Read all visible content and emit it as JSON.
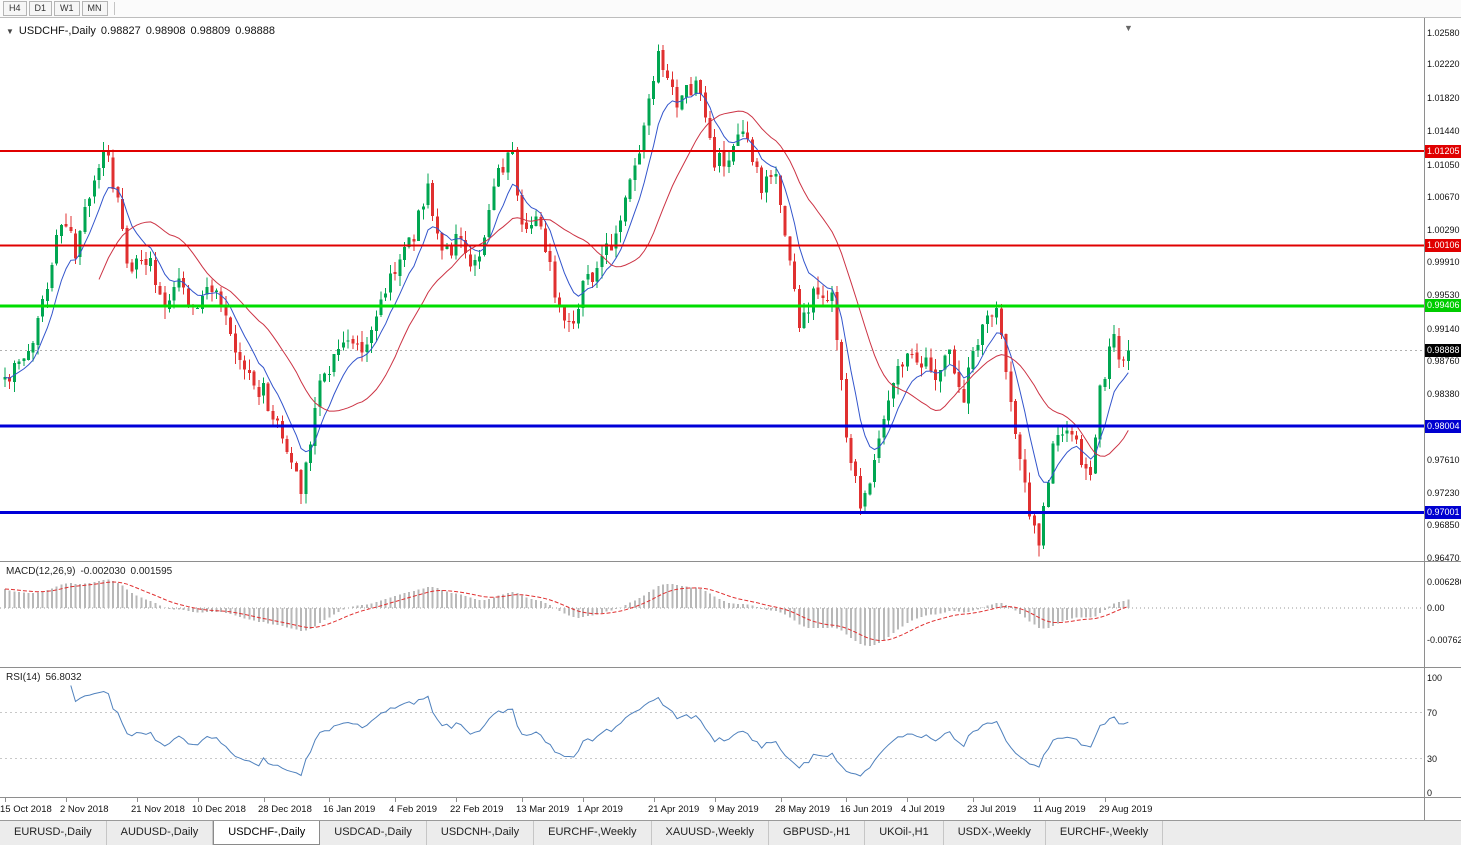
{
  "toolbar": {
    "timeframes": [
      "H4",
      "D1",
      "W1",
      "MN"
    ]
  },
  "header": {
    "expander_icon": "▼",
    "symbol": "USDCHF-,Daily",
    "open": "0.98827",
    "high": "0.98908",
    "low": "0.98809",
    "close": "0.98888",
    "shift_marker_icon": "▼"
  },
  "indicators": {
    "macd": {
      "label": "MACD(12,26,9)",
      "value_main": "-0.002030",
      "value_signal": "0.001595",
      "axis_labels": [
        {
          "text": "0.006286",
          "value": 0.006286
        },
        {
          "text": "0.00",
          "value": 0
        },
        {
          "text": "-0.00762",
          "value": -0.00762
        }
      ]
    },
    "rsi": {
      "label": "RSI(14)",
      "value": "56.8032",
      "axis_labels": [
        {
          "text": "100",
          "value": 100
        },
        {
          "text": "70",
          "value": 70
        },
        {
          "text": "30",
          "value": 30
        },
        {
          "text": "0",
          "value": 0
        }
      ],
      "levels": [
        70,
        30
      ]
    }
  },
  "price_axis": {
    "labels": [
      {
        "text": "1.02580",
        "value": 1.0258
      },
      {
        "text": "1.02220",
        "value": 1.0222
      },
      {
        "text": "1.01820",
        "value": 1.0182
      },
      {
        "text": "1.01440",
        "value": 1.0144
      },
      {
        "text": "1.01050",
        "value": 1.0105
      },
      {
        "text": "1.00670",
        "value": 1.0067
      },
      {
        "text": "1.00290",
        "value": 1.0029
      },
      {
        "text": "0.99910",
        "value": 0.9991
      },
      {
        "text": "0.99530",
        "value": 0.9953
      },
      {
        "text": "0.99140",
        "value": 0.9914
      },
      {
        "text": "0.98760",
        "value": 0.9876
      },
      {
        "text": "0.98380",
        "value": 0.9838
      },
      {
        "text": "0.97610",
        "value": 0.9761
      },
      {
        "text": "0.97230",
        "value": 0.9723
      },
      {
        "text": "0.96850",
        "value": 0.9685
      },
      {
        "text": "0.96470",
        "value": 0.9647
      }
    ],
    "badges": [
      {
        "text": "1.01205",
        "value": 1.01205,
        "bg": "#e00000"
      },
      {
        "text": "1.00106",
        "value": 1.00106,
        "bg": "#e00000"
      },
      {
        "text": "0.99406",
        "value": 0.99406,
        "bg": "#00cc00"
      },
      {
        "text": "0.98888",
        "value": 0.98888,
        "bg": "#000000"
      },
      {
        "text": "0.98004",
        "value": 0.98004,
        "bg": "#0000d0"
      },
      {
        "text": "0.97001",
        "value": 0.97001,
        "bg": "#0000d0"
      }
    ]
  },
  "chart_data": {
    "type": "candlestick",
    "symbol": "USDCHF",
    "timeframe": "Daily",
    "title": "USDCHF-,Daily",
    "ohlc_current": {
      "open": 0.98827,
      "high": 0.98908,
      "low": 0.98809,
      "close": 0.98888
    },
    "price_axis_range": {
      "top": 1.02755,
      "bottom": 0.96424
    },
    "horizontal_lines": [
      {
        "value": 1.01205,
        "color": "#e00000",
        "width": 2,
        "role": "resistance"
      },
      {
        "value": 1.00106,
        "color": "#e00000",
        "width": 2,
        "role": "resistance"
      },
      {
        "value": 0.99406,
        "color": "#00dd00",
        "width": 3,
        "role": "resistance"
      },
      {
        "value": 0.98004,
        "color": "#0000d8",
        "width": 3,
        "role": "support"
      },
      {
        "value": 0.97001,
        "color": "#0000d8",
        "width": 3,
        "role": "support"
      }
    ],
    "current_price_line": {
      "value": 0.98888,
      "color": "#b0b0b0"
    },
    "candle_count": 240,
    "seed": 42,
    "noise": 0.0012,
    "last_close": 0.98888,
    "macd_seed_bias": 0.0045,
    "ma_fast_period": 8,
    "ma_slow_period": 21,
    "macd_params": [
      12,
      26,
      9
    ],
    "rsi_period": 14,
    "price_path_anchors": [
      [
        0,
        0.9855
      ],
      [
        5,
        0.988
      ],
      [
        12,
        1.004
      ],
      [
        15,
        1.0005
      ],
      [
        21,
        1.0125
      ],
      [
        24,
        1.006
      ],
      [
        26,
        0.9985
      ],
      [
        30,
        1.0
      ],
      [
        34,
        0.9945
      ],
      [
        37,
        0.9975
      ],
      [
        40,
        0.9935
      ],
      [
        44,
        0.9965
      ],
      [
        50,
        0.987
      ],
      [
        55,
        0.984
      ],
      [
        58,
        0.98
      ],
      [
        63,
        0.973
      ],
      [
        67,
        0.985
      ],
      [
        72,
        0.9905
      ],
      [
        76,
        0.9885
      ],
      [
        82,
        0.9975
      ],
      [
        87,
        1.0025
      ],
      [
        90,
        1.008
      ],
      [
        93,
        1.0005
      ],
      [
        97,
        1.0015
      ],
      [
        100,
        0.9985
      ],
      [
        105,
        1.009
      ],
      [
        108,
        1.012
      ],
      [
        110,
        1.0035
      ],
      [
        113,
        1.0045
      ],
      [
        118,
        0.994
      ],
      [
        121,
        0.9925
      ],
      [
        123,
        0.997
      ],
      [
        127,
        0.999
      ],
      [
        130,
        1.0025
      ],
      [
        135,
        1.012
      ],
      [
        139,
        1.0225
      ],
      [
        143,
        1.017
      ],
      [
        147,
        1.0205
      ],
      [
        151,
        1.011
      ],
      [
        154,
        1.0105
      ],
      [
        157,
        1.014
      ],
      [
        161,
        1.0075
      ],
      [
        164,
        1.0095
      ],
      [
        169,
        0.992
      ],
      [
        172,
        0.995
      ],
      [
        176,
        0.9955
      ],
      [
        179,
        0.979
      ],
      [
        182,
        0.9705
      ],
      [
        185,
        0.9765
      ],
      [
        189,
        0.986
      ],
      [
        193,
        0.9895
      ],
      [
        197,
        0.986
      ],
      [
        201,
        0.9885
      ],
      [
        204,
        0.9835
      ],
      [
        207,
        0.9905
      ],
      [
        211,
        0.9945
      ],
      [
        214,
        0.9825
      ],
      [
        217,
        0.9725
      ],
      [
        220,
        0.9665
      ],
      [
        223,
        0.9775
      ],
      [
        226,
        0.98
      ],
      [
        229,
        0.976
      ],
      [
        231,
        0.9735
      ],
      [
        233,
        0.9845
      ],
      [
        236,
        0.99
      ],
      [
        238,
        0.9868
      ],
      [
        239,
        0.98888
      ]
    ],
    "date_labels": [
      {
        "index": 0,
        "text": "15 Oct 2018"
      },
      {
        "index": 13,
        "text": "2 Nov 2018"
      },
      {
        "index": 28,
        "text": "21 Nov 2018"
      },
      {
        "index": 41,
        "text": "10 Dec 2018"
      },
      {
        "index": 55,
        "text": "28 Dec 2018"
      },
      {
        "index": 69,
        "text": "16 Jan 2019"
      },
      {
        "index": 83,
        "text": "4 Feb 2019"
      },
      {
        "index": 96,
        "text": "22 Feb 2019"
      },
      {
        "index": 110,
        "text": "13 Mar 2019"
      },
      {
        "index": 123,
        "text": "1 Apr 2019"
      },
      {
        "index": 138,
        "text": "21 Apr 2019"
      },
      {
        "index": 151,
        "text": "9 May 2019"
      },
      {
        "index": 165,
        "text": "28 May 2019"
      },
      {
        "index": 179,
        "text": "16 Jun 2019"
      },
      {
        "index": 192,
        "text": "4 Jul 2019"
      },
      {
        "index": 206,
        "text": "23 Jul 2019"
      },
      {
        "index": 220,
        "text": "11 Aug 2019"
      },
      {
        "index": 234,
        "text": "29 Aug 2019"
      }
    ],
    "colors": {
      "up": "#00a651",
      "down": "#e03030",
      "ma_fast": "#3355cc",
      "ma_slow": "#cc3344",
      "macd_hist": "#b8b8b8",
      "macd_signal": "#e03030",
      "rsi": "#4f81bd"
    }
  },
  "tabs": {
    "active_index": 2,
    "items": [
      {
        "label": "EURUSD-,Daily"
      },
      {
        "label": "AUDUSD-,Daily"
      },
      {
        "label": "USDCHF-,Daily"
      },
      {
        "label": "USDCAD-,Daily"
      },
      {
        "label": "USDCNH-,Daily"
      },
      {
        "label": "EURCHF-,Weekly"
      },
      {
        "label": "XAUUSD-,Weekly"
      },
      {
        "label": "GBPUSD-,H1"
      },
      {
        "label": "UKOil-,H1"
      },
      {
        "label": "USDX-,Weekly"
      },
      {
        "label": "EURCHF-,Weekly"
      }
    ]
  }
}
